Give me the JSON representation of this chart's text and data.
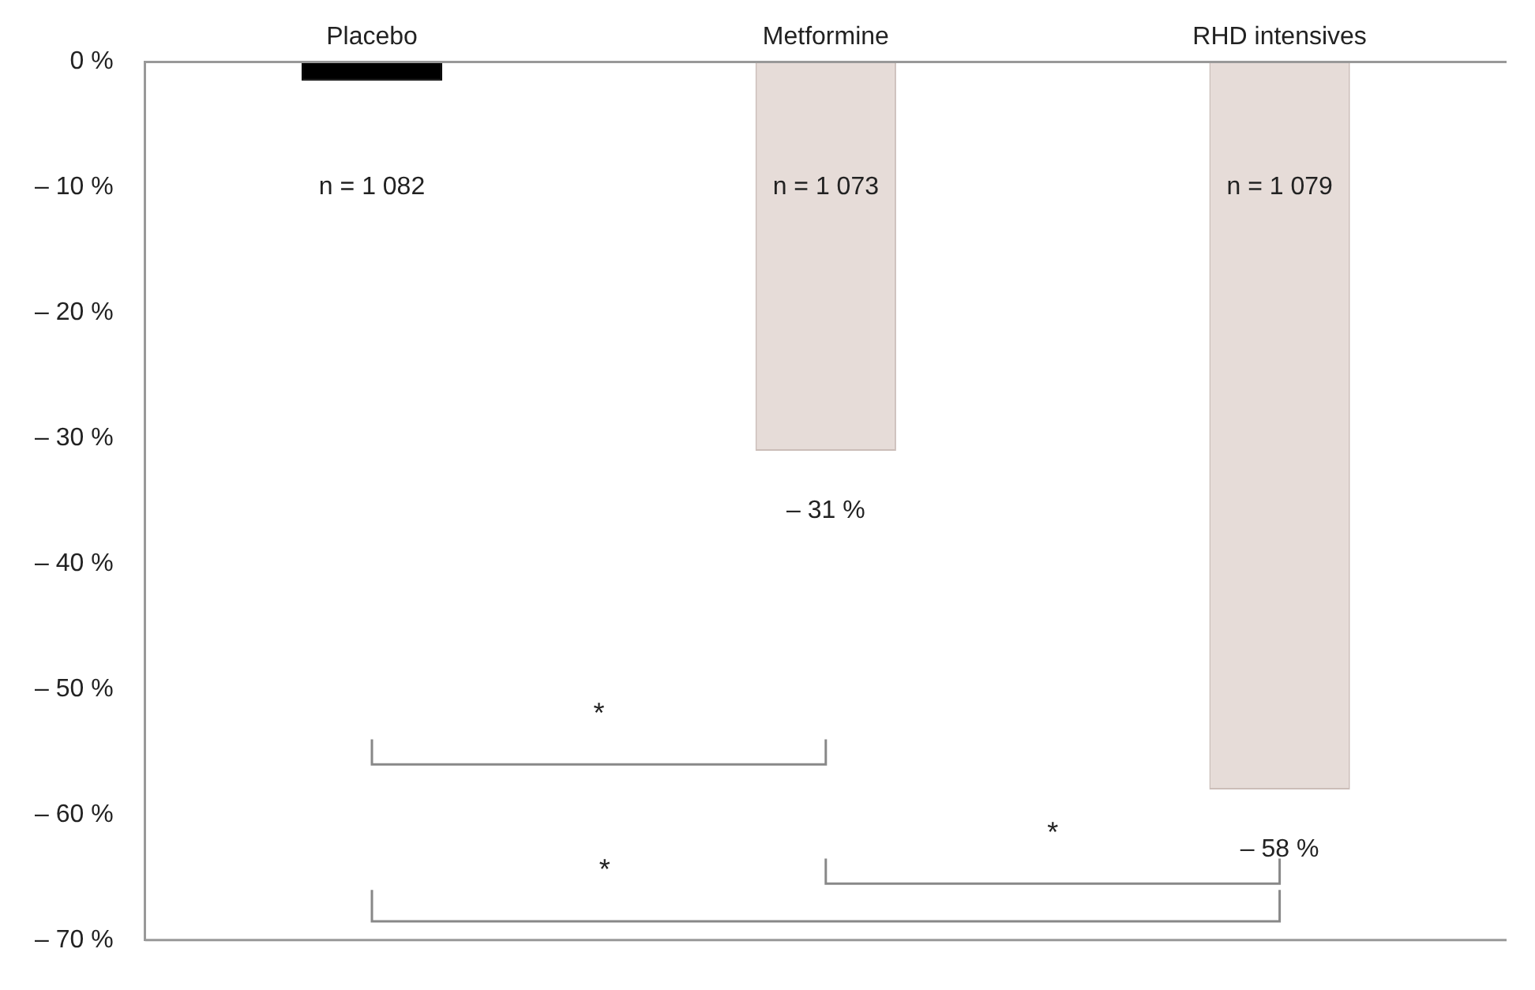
{
  "chart_data": {
    "type": "bar",
    "categories": [
      "Placebo",
      "Metformine",
      "RHD intensives"
    ],
    "values": [
      -1.5,
      -31,
      -58
    ],
    "colors": [
      "#000000",
      "#e6dcd8",
      "#e6dcd8"
    ],
    "value_labels": [
      null,
      "– 31 %",
      "– 58 %"
    ],
    "ylim": [
      -70,
      0
    ],
    "yticks": [
      {
        "value": 0,
        "label": "0 %"
      },
      {
        "value": -10,
        "label": "– 10 %"
      },
      {
        "value": -20,
        "label": "– 20 %"
      },
      {
        "value": -30,
        "label": "– 30 %"
      },
      {
        "value": -40,
        "label": "– 40 %"
      },
      {
        "value": -50,
        "label": "– 50 %"
      },
      {
        "value": -60,
        "label": "– 60 %"
      },
      {
        "value": -70,
        "label": "– 70 %"
      }
    ],
    "annotations": [
      "n = 1 082",
      "n = 1 073",
      "n = 1 079",
      "*",
      "*",
      "*"
    ],
    "grid": false,
    "legend": false
  }
}
